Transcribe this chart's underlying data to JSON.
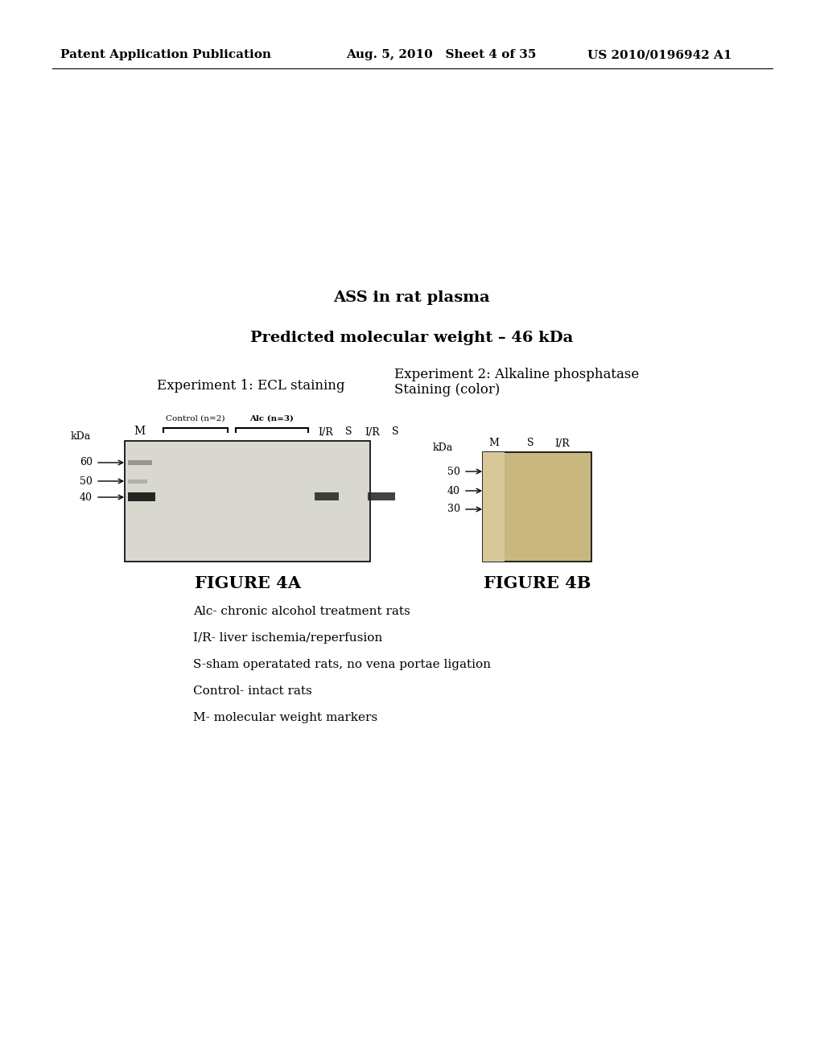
{
  "page_header_left": "Patent Application Publication",
  "page_header_middle": "Aug. 5, 2010   Sheet 4 of 35",
  "page_header_right": "US 2010/0196942 A1",
  "title1": "ASS in rat plasma",
  "title2": "Predicted molecular weight – 46 kDa",
  "exp1_label": "Experiment 1: ECL staining",
  "exp2_label": "Experiment 2: Alkaline phosphatase\nStaining (color)",
  "fig4a_label": "FIGURE 4A",
  "fig4b_label": "FIGURE 4B",
  "legend_lines": [
    "Alc- chronic alcohol treatment rats",
    "I/R- liver ischemia/reperfusion",
    "S-sham operatated rats, no vena portae ligation",
    "Control- intact rats",
    "M- molecular weight markers"
  ],
  "bracket1_label": "Control (n=2)",
  "bracket2_label": "Alc (n=3)",
  "fig4a_kdas": {
    "60": 575,
    "50": 598,
    "40": 618
  },
  "fig4a_lane_labels": [
    "I/R",
    "S",
    "I/R",
    "S"
  ],
  "fig4b_kdas": {
    "50": 586,
    "40": 610,
    "30": 633
  },
  "fig4b_col_labels": [
    "M",
    "S",
    "I/R"
  ]
}
